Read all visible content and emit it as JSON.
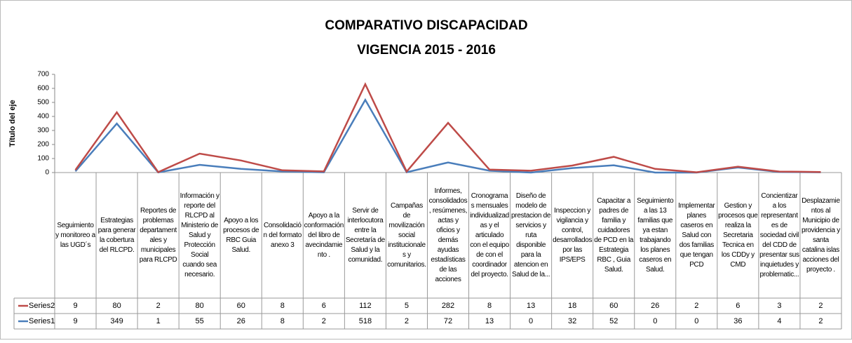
{
  "chart_data": {
    "type": "line",
    "stacked": true,
    "title": "COMPARATIVO DISCAPACIDAD",
    "subtitle": "VIGENCIA 2015 - 2016",
    "y_label": "Título del eje",
    "categories": [
      "Seguimiento y monitoreo a las UGD´s",
      "Estrategias para generar la cobertura del RLCPD.",
      "Reportes de problemas departamentales y municipales para RLCPD",
      "Información y reporte del RLCPD al Ministerio de Salud y Protección Social cuando sea necesario.",
      "Apoyo a los procesos de RBC Guia Salud.",
      "Consolidación del formato anexo 3",
      "Apoyo a la conformación del libro de avecindamiento .",
      "Servir de interlocutora entre la Secretaría de Salud y la comunidad.",
      "Campañas de movilización social institucionales y comunitarios.",
      "Informes, consolidados, resúmenes, actas y oficios y demás ayudas estadísticas de las acciones",
      "Cronogramas mensuales individualizadas y el articulado con el equipo de con el coordinador del proyecto.",
      "Diseño de modelo de prestacion de servicios y ruta disponible para la atencion en Salud de la...",
      "Inspeccion y vigilancia y control, desarrollados por las IPS/EPS",
      "Capacitar a padres de familia y cuidadores de PCD en la Estrategia RBC , Guia Salud.",
      "Seguimiento a las 13 familias que ya estan trabajando los planes caseros en Salud.",
      "Implementar planes caseros en Salud con dos familias que tengan PCD",
      "Gestion y procesos que realiza la Secretaria Tecnica en los CDDy y CMD",
      "Concientizar a los representantes de sociedad civil del CDD de presentar sus inquietudes y problematic...",
      "Desplazamientos al Municipio de providencia y santa catalina islas acciones del proyecto ."
    ],
    "series": [
      {
        "name": "Series1",
        "color": "#4a7ebb",
        "values": [
          9,
          349,
          1,
          55,
          26,
          8,
          2,
          518,
          2,
          72,
          13,
          0,
          32,
          52,
          0,
          0,
          36,
          4,
          2
        ]
      },
      {
        "name": "Series2",
        "color": "#be4b48",
        "values": [
          9,
          80,
          2,
          80,
          60,
          8,
          6,
          112,
          5,
          282,
          8,
          13,
          18,
          60,
          26,
          2,
          6,
          3,
          2
        ]
      }
    ],
    "ylim": [
      0,
      700
    ],
    "yticks": [
      0,
      100,
      200,
      300,
      400,
      500,
      600,
      700
    ],
    "grid": false
  }
}
